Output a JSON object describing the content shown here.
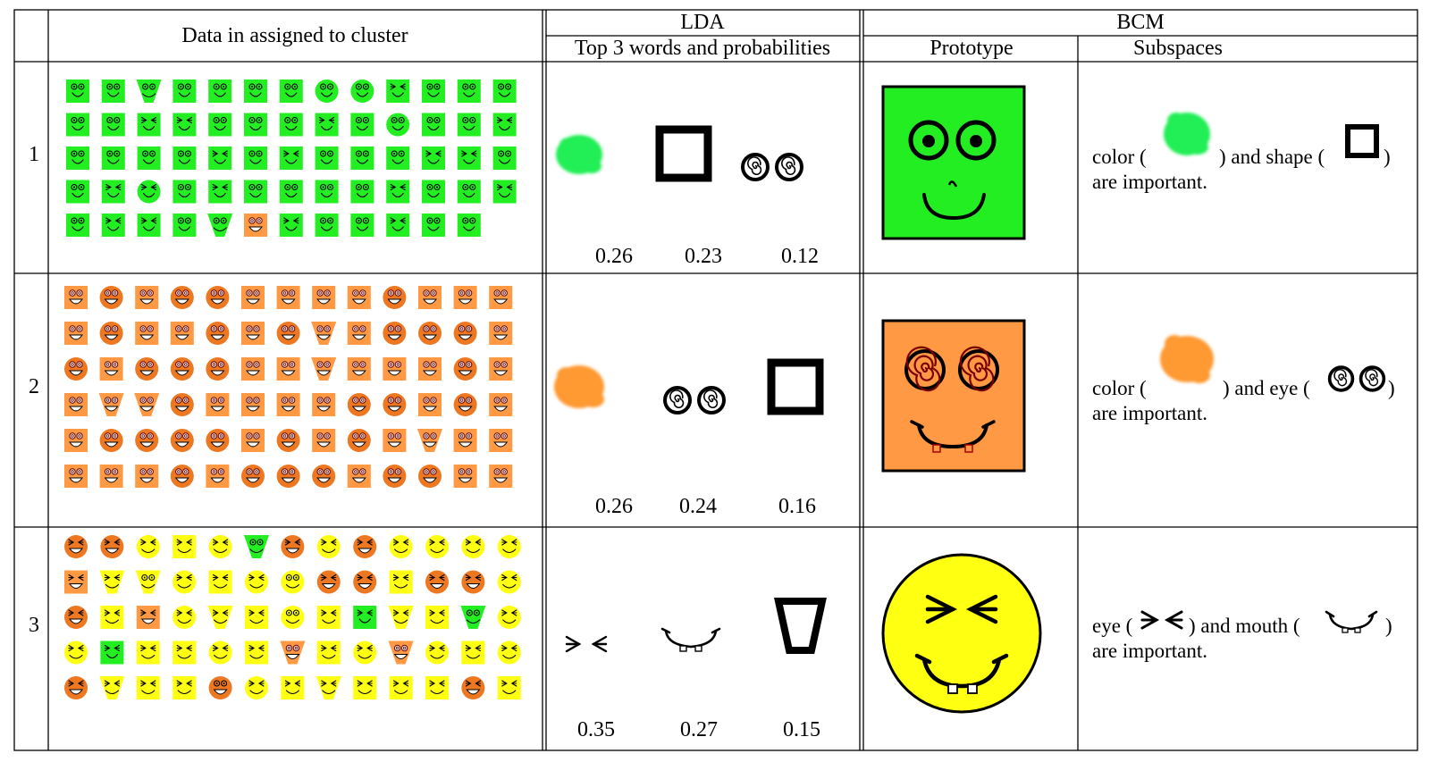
{
  "headers": {
    "data_col": "Data in assigned to cluster",
    "lda": "LDA",
    "lda_sub": "Top 3 words and probabilities",
    "bcm": "BCM",
    "prototype": "Prototype",
    "subspaces": "Subspaces"
  },
  "colors": {
    "green": "#22ee22",
    "orange": "#ff9944",
    "dark_orange": "#ee7722",
    "yellow": "#ffff11",
    "border": "#000000"
  },
  "rows": [
    {
      "number": "1",
      "probabilities": [
        "0.26",
        "0.23",
        "0.12"
      ],
      "lda_words": [
        "green-color-blob-icon",
        "square-shape-icon",
        "spiral-eyes-icon"
      ],
      "prototype": "green-square-face-round-eyes",
      "subspace_parts": [
        "color (",
        ") and shape (",
        ")"
      ],
      "subspace_line2": "are important.",
      "subspace_icons": [
        "green-color-blob-icon",
        "square-shape-icon"
      ],
      "grid": [
        [
          "gsq-dot",
          "gsq-dot",
          "gtri",
          "gsq-dot",
          "gsq-dot",
          "gsq-dot",
          "gsq-dot",
          "gcir-dot",
          "gcir-dot",
          "gsq-squint",
          "gsq-dot",
          "gsq-dot",
          "gsq-dot"
        ],
        [
          "gsq-dot",
          "gsq-dot",
          "gsq-squint",
          "gsq-squint",
          "gsq-dot",
          "gsq-dot",
          "gsq-dot",
          "gsq-squint",
          "gsq-dot",
          "gcir-dot",
          "gsq-dot",
          "gsq-dot",
          "gsq-squint"
        ],
        [
          "gsq-dot",
          "gsq-dot",
          "gsq-dot",
          "gsq-dot",
          "gsq-squint",
          "gsq-dot",
          "gsq-squint",
          "gsq-dot",
          "gsq-dot",
          "gsq-dot",
          "gsq-squint",
          "gsq-squint",
          "gsq-dot"
        ],
        [
          "gsq-dot",
          "gsq-squint",
          "gcir-squint",
          "gsq-dot",
          "gsq-squint",
          "gsq-dot",
          "gsq-dot",
          "gsq-dot",
          "gsq-dot",
          "gsq-squint",
          "gsq-dot",
          "gsq-dot",
          "gsq-squint"
        ],
        [
          "gsq-dot",
          "gsq-squint",
          "gsq-squint",
          "gsq-dot",
          "gtri",
          "osq-spiral",
          "gsq-squint",
          "gsq-dot",
          "gsq-dot",
          "gsq-squint",
          "gsq-dot",
          "gsq-dot"
        ]
      ]
    },
    {
      "number": "2",
      "probabilities": [
        "0.26",
        "0.24",
        "0.16"
      ],
      "lda_words": [
        "orange-color-blob-icon",
        "spiral-eyes-icon",
        "square-shape-icon"
      ],
      "prototype": "orange-square-face-spiral-eyes",
      "subspace_parts": [
        "color (",
        ") and eye (",
        ")"
      ],
      "subspace_line2": "are important.",
      "subspace_icons": [
        "orange-color-blob-icon",
        "spiral-eyes-icon"
      ],
      "grid": [
        [
          "osq",
          "ocir",
          "osq",
          "ocir",
          "ocir",
          "osq",
          "osq",
          "osq",
          "osq",
          "ocir",
          "osq",
          "osq",
          "osq"
        ],
        [
          "osq",
          "ocir",
          "osq",
          "osq",
          "ocir",
          "osq",
          "ocir",
          "otri",
          "osq",
          "ocir",
          "ocir",
          "ocir",
          "osq"
        ],
        [
          "ocir",
          "osq",
          "ocir",
          "ocir",
          "ocir",
          "osq",
          "osq",
          "otri",
          "osq",
          "osq",
          "osq",
          "ocir",
          "osq"
        ],
        [
          "osq",
          "otri",
          "otri",
          "ocir",
          "osq",
          "osq",
          "osq",
          "osq",
          "ocir",
          "ocir",
          "osq",
          "ocir",
          "osq"
        ],
        [
          "osq",
          "ocir",
          "ocir",
          "ocir",
          "ocir",
          "osq",
          "ocir",
          "osq",
          "ocir",
          "osq",
          "otri",
          "osq",
          "osq"
        ],
        [
          "osq",
          "osq",
          "osq",
          "ocir",
          "osq",
          "ocir",
          "ocir",
          "ocir",
          "osq",
          "ocir",
          "ocir",
          "osq",
          "osq"
        ]
      ]
    },
    {
      "number": "3",
      "probabilities": [
        "0.35",
        "0.27",
        "0.15"
      ],
      "lda_words": [
        "squint-eyes-icon",
        "toothy-mouth-icon",
        "trapezoid-shape-icon"
      ],
      "prototype": "yellow-circle-face-squint-eyes",
      "subspace_parts": [
        "eye (",
        ") and mouth (",
        ")"
      ],
      "subspace_line2": "are important.",
      "subspace_icons": [
        "squint-eyes-icon",
        "toothy-mouth-icon"
      ],
      "grid": [
        [
          "ocir-squint",
          "ocir-squint",
          "ycir",
          "ysq",
          "ycir",
          "gtri",
          "ocir-squint",
          "ycir",
          "ocir-squint",
          "ycir",
          "ycir",
          "ycir",
          "ycir"
        ],
        [
          "osq-squint",
          "ytri",
          "ytri-dot",
          "ycir",
          "ysq",
          "ycir",
          "ycir-dot",
          "ocir-squint",
          "ocir-squint",
          "ysq",
          "ocir-squint",
          "ocir-squint",
          "ycir"
        ],
        [
          "ocir-squint",
          "ysq",
          "osq-squint",
          "ycir",
          "ytri",
          "ysq",
          "ycir-dot",
          "ysq",
          "gsq-squint",
          "ytri",
          "ysq",
          "gtri",
          "ycir"
        ],
        [
          "ycir",
          "gsq-squint",
          "ysq",
          "ysq",
          "ycir",
          "ysq",
          "otri",
          "ysq",
          "ycir",
          "otri",
          "ycir",
          "ysq",
          "ycir"
        ],
        [
          "ocir-squint",
          "ytri",
          "ysq",
          "ysq",
          "ocir-dot",
          "ycir",
          "ysq",
          "ytri",
          "ysq",
          "ysq",
          "ysq",
          "ocir-squint",
          "ysq"
        ]
      ]
    }
  ]
}
